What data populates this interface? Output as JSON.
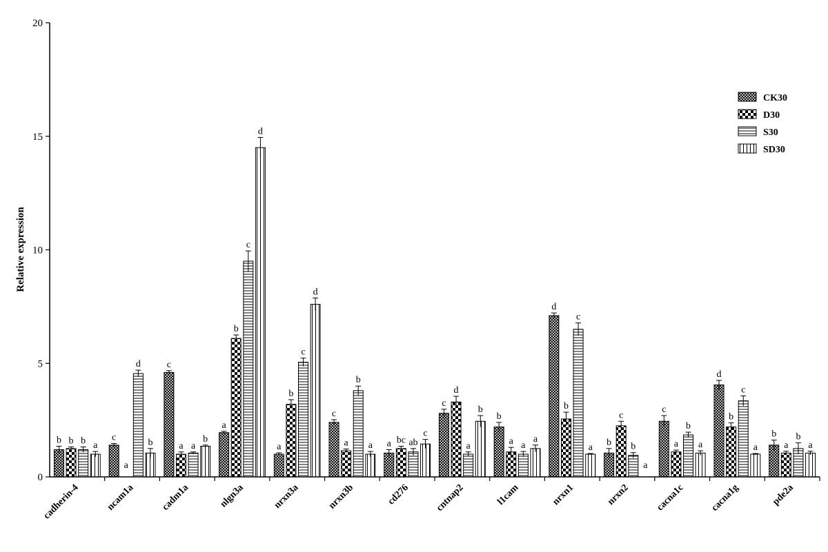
{
  "chart_data": {
    "type": "bar",
    "ylabel": "Relative expression",
    "xlabel": "",
    "ylim": [
      0,
      20
    ],
    "yticks": [
      0,
      5,
      10,
      15,
      20
    ],
    "legend_position": "top-right",
    "categories": [
      "cadherin-4",
      "ncam1a",
      "cadm1a",
      "nlgn3a",
      "nrxn3a",
      "nrxn3b",
      "cd276",
      "cntnap2",
      "l1cam",
      "nrxn1",
      "nrxn2",
      "cacna1c",
      "cacna1g",
      "pde2a"
    ],
    "series": [
      {
        "name": "CK30",
        "pattern": "crosshatch-fine",
        "values": [
          1.2,
          1.4,
          4.6,
          1.95,
          1.0,
          2.4,
          1.05,
          2.8,
          2.2,
          7.1,
          1.05,
          2.45,
          4.05,
          1.4
        ],
        "errors": [
          0.15,
          0.07,
          0.08,
          0.06,
          0.06,
          0.12,
          0.15,
          0.18,
          0.2,
          0.12,
          0.2,
          0.25,
          0.2,
          0.22
        ],
        "labels": [
          "b",
          "c",
          "c",
          "a",
          "a",
          "c",
          "a",
          "c",
          "b",
          "d",
          "b",
          "c",
          "d",
          "b"
        ]
      },
      {
        "name": "D30",
        "pattern": "checker",
        "values": [
          1.25,
          0,
          1.0,
          6.1,
          3.2,
          1.15,
          1.25,
          3.3,
          1.1,
          2.55,
          2.25,
          1.1,
          2.2,
          1.05
        ],
        "errors": [
          0.07,
          0,
          0.1,
          0.15,
          0.2,
          0.08,
          0.1,
          0.25,
          0.2,
          0.3,
          0.2,
          0.08,
          0.18,
          0.08
        ],
        "labels": [
          "b",
          "a",
          "a",
          "b",
          "b",
          "a",
          "bc",
          "d",
          "a",
          "b",
          "c",
          "a",
          "b",
          "a"
        ]
      },
      {
        "name": "S30",
        "pattern": "horizontal",
        "values": [
          1.2,
          4.55,
          1.05,
          9.5,
          5.05,
          3.8,
          1.1,
          1.0,
          1.0,
          6.5,
          0.95,
          1.85,
          3.35,
          1.25
        ],
        "errors": [
          0.12,
          0.15,
          0.05,
          0.45,
          0.18,
          0.2,
          0.15,
          0.1,
          0.12,
          0.28,
          0.12,
          0.12,
          0.22,
          0.25
        ],
        "labels": [
          "b",
          "d",
          "a",
          "c",
          "c",
          "b",
          "ab",
          "a",
          "a",
          "c",
          "b",
          "b",
          "c",
          "b"
        ]
      },
      {
        "name": "SD30",
        "pattern": "vertical",
        "values": [
          1.0,
          1.05,
          1.35,
          14.5,
          7.6,
          1.0,
          1.45,
          2.45,
          1.25,
          1.0,
          0,
          1.05,
          1.0,
          1.05
        ],
        "errors": [
          0.12,
          0.2,
          0.05,
          0.45,
          0.28,
          0.12,
          0.2,
          0.25,
          0.15,
          0.03,
          0,
          0.1,
          0.03,
          0.08
        ],
        "labels": [
          "a",
          "b",
          "b",
          "d",
          "d",
          "a",
          "c",
          "b",
          "a",
          "a",
          "a",
          "a",
          "a",
          "a"
        ]
      }
    ]
  }
}
